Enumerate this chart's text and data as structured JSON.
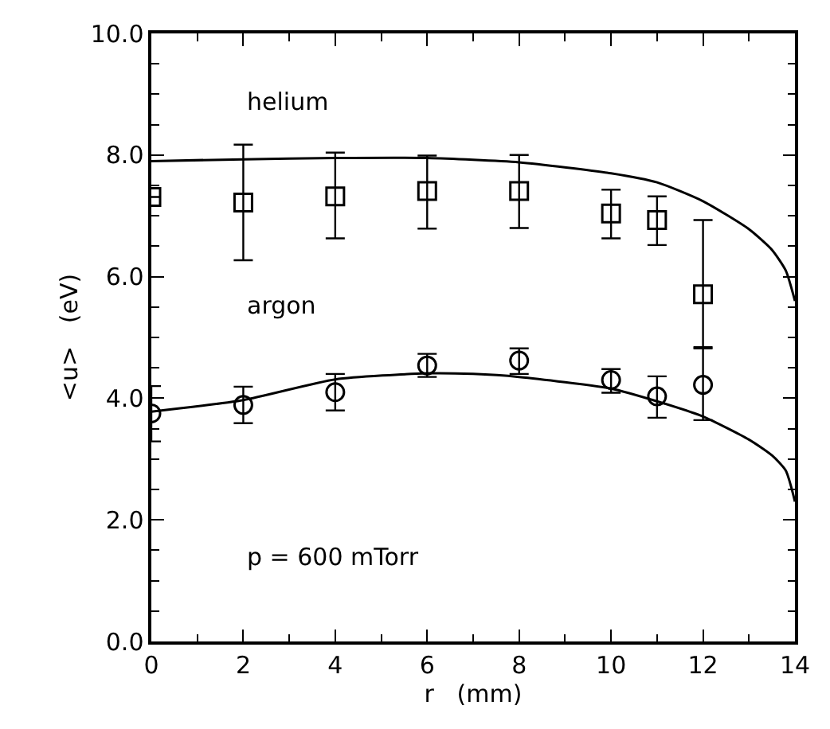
{
  "chart_data": {
    "type": "scatter",
    "xlabel": "r   (mm)",
    "ylabel": "<u>   (eV)",
    "xlim": [
      0,
      14
    ],
    "xticks": [
      0,
      2,
      4,
      6,
      8,
      10,
      12,
      14
    ],
    "ylim": [
      0,
      10
    ],
    "yticks": [
      {
        "value": 0,
        "label": "0.0"
      },
      {
        "value": 2,
        "label": "2.0"
      },
      {
        "value": 4,
        "label": "4.0"
      },
      {
        "value": 6,
        "label": "6.0"
      },
      {
        "value": 8,
        "label": "8.0"
      },
      {
        "value": 10,
        "label": "10.0"
      }
    ],
    "legend": false,
    "annotations": [
      "p = 600 mTorr"
    ],
    "series": [
      {
        "name": "helium",
        "marker": "square",
        "color": "#000000",
        "x": [
          0,
          2,
          4,
          6,
          8,
          10,
          11,
          12
        ],
        "values": [
          7.31,
          7.22,
          7.32,
          7.41,
          7.41,
          7.04,
          6.93,
          5.71
        ],
        "errors": [
          null,
          [
            6.27,
            8.17
          ],
          [
            6.63,
            8.04
          ],
          [
            6.79,
            7.99
          ],
          [
            6.8,
            8.0
          ],
          [
            6.63,
            7.43
          ],
          [
            6.52,
            7.32
          ],
          [
            4.84,
            6.93
          ]
        ]
      },
      {
        "name": "argon",
        "marker": "circle",
        "color": "#000000",
        "x": [
          0,
          2,
          4,
          6,
          8,
          10,
          11,
          12
        ],
        "values": [
          3.75,
          3.89,
          4.1,
          4.54,
          4.62,
          4.3,
          4.03,
          4.22
        ],
        "errors": [
          [
            3.29,
            4.2
          ],
          [
            3.59,
            4.19
          ],
          [
            3.8,
            4.4
          ],
          [
            4.35,
            4.73
          ],
          [
            4.4,
            4.82
          ],
          [
            4.09,
            4.48
          ],
          [
            3.68,
            4.36
          ],
          [
            3.64,
            4.82
          ]
        ]
      },
      {
        "type": "line",
        "color": "#000000",
        "x": [
          0,
          2,
          4,
          6,
          8,
          10,
          11,
          12,
          13,
          13.5,
          13.8,
          14
        ],
        "values": [
          7.9,
          7.93,
          7.95,
          7.95,
          7.88,
          7.7,
          7.55,
          7.24,
          6.78,
          6.44,
          6.1,
          5.6
        ]
      },
      {
        "type": "line",
        "color": "#000000",
        "x": [
          0,
          2,
          4,
          6,
          7,
          8,
          10,
          11,
          12,
          13,
          13.5,
          13.8,
          14
        ],
        "values": [
          3.78,
          3.97,
          4.31,
          4.41,
          4.4,
          4.35,
          4.16,
          3.95,
          3.7,
          3.32,
          3.06,
          2.81,
          2.3
        ]
      }
    ]
  }
}
